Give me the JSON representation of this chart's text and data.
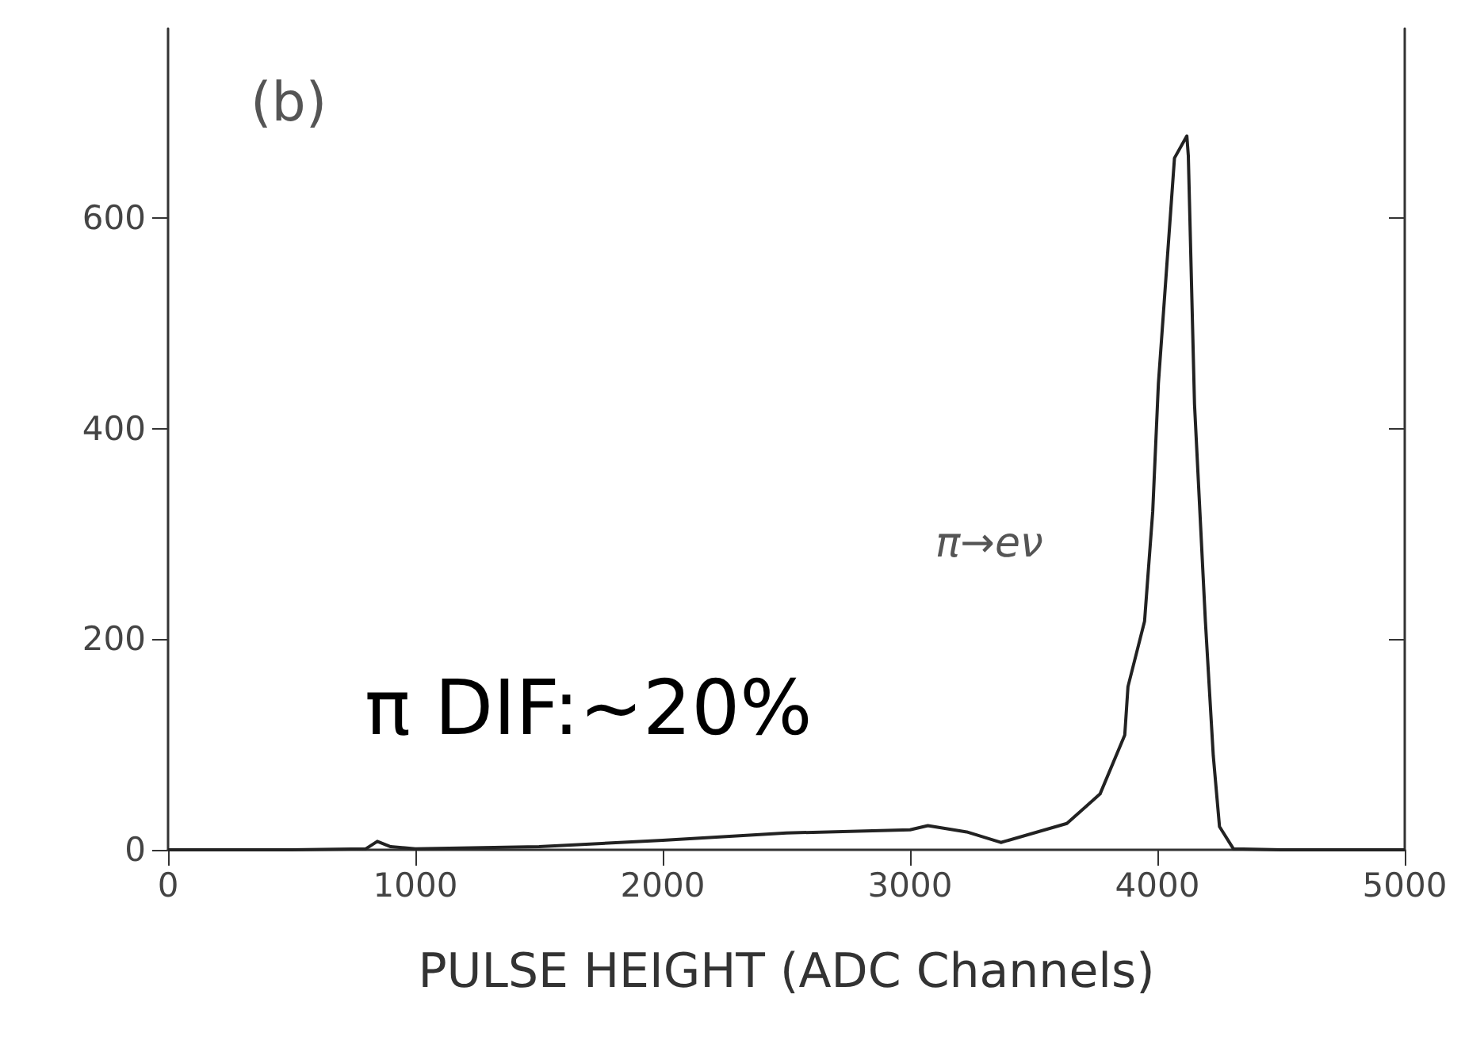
{
  "chart_data": {
    "type": "line",
    "xlabel": "PULSE HEIGHT (ADC Channels)",
    "annotations": [
      "(b)",
      "π→eν",
      "π DIF:~20%"
    ],
    "x": [
      0,
      500,
      800,
      846,
      900,
      1000,
      1500,
      2000,
      2500,
      3000,
      3072,
      3229,
      3367,
      3634,
      3768,
      3868,
      3881,
      3948,
      3981,
      4004,
      4069,
      4119,
      4125,
      4150,
      4194,
      4226,
      4251,
      4307,
      4500,
      5000
    ],
    "series": [
      {
        "color": "#222222",
        "values": [
          0,
          0,
          1,
          8,
          3,
          1,
          3,
          9,
          16,
          19,
          23,
          17,
          7,
          25,
          53,
          109,
          155,
          217,
          321,
          443,
          657,
          678,
          659,
          423,
          217,
          89,
          22,
          1,
          0,
          0
        ]
      }
    ],
    "xlim": [
      0,
      5000
    ],
    "xticks": [
      0,
      1000,
      2000,
      3000,
      4000,
      5000
    ],
    "ylim": [
      0,
      780
    ],
    "yticks": [
      0,
      200,
      400,
      600
    ],
    "grid": false,
    "marker": "none",
    "line_style": "solid"
  }
}
